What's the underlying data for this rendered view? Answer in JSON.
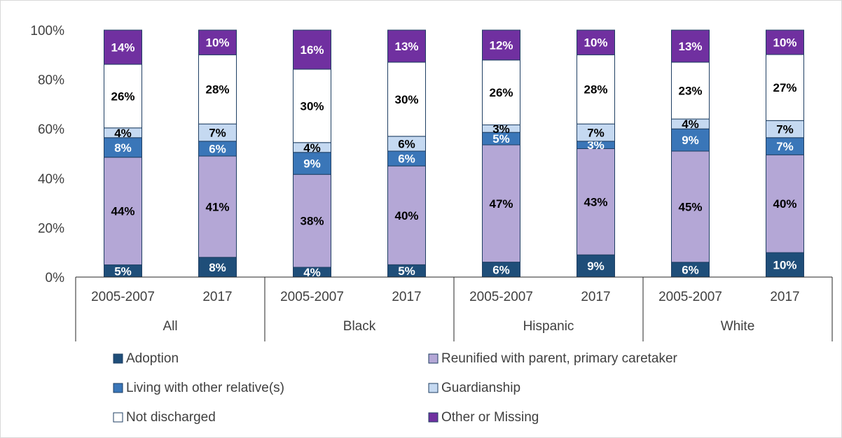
{
  "chart_data": {
    "type": "bar",
    "stacked": true,
    "percent": true,
    "title": "",
    "xlabel": "",
    "ylabel": "",
    "ylim": [
      0,
      100
    ],
    "y_ticks": [
      "0%",
      "20%",
      "40%",
      "60%",
      "80%",
      "100%"
    ],
    "grid": false,
    "legend_position": "bottom",
    "groups": [
      {
        "name": "All",
        "bars": [
          {
            "label": "2005-2007",
            "values": [
              5,
              44,
              8,
              4,
              26,
              14
            ]
          },
          {
            "label": "2017",
            "values": [
              8,
              41,
              6,
              7,
              28,
              10
            ]
          }
        ]
      },
      {
        "name": "Black",
        "bars": [
          {
            "label": "2005-2007",
            "values": [
              4,
              38,
              9,
              4,
              30,
              16
            ]
          },
          {
            "label": "2017",
            "values": [
              5,
              40,
              6,
              6,
              30,
              13
            ]
          }
        ]
      },
      {
        "name": "Hispanic",
        "bars": [
          {
            "label": "2005-2007",
            "values": [
              6,
              47,
              5,
              3,
              26,
              12
            ]
          },
          {
            "label": "2017",
            "values": [
              9,
              43,
              3,
              7,
              28,
              10
            ]
          }
        ]
      },
      {
        "name": "White",
        "bars": [
          {
            "label": "2005-2007",
            "values": [
              6,
              45,
              9,
              4,
              23,
              13
            ]
          },
          {
            "label": "2017",
            "values": [
              10,
              40,
              7,
              7,
              27,
              10
            ]
          }
        ]
      }
    ],
    "series": [
      {
        "name": "Adoption",
        "color": "#1f4e79",
        "text_color": "#ffffff"
      },
      {
        "name": "Reunified with parent, primary caretaker",
        "color": "#b4a7d6",
        "text_color": "#000000"
      },
      {
        "name": "Living with other relative(s)",
        "color": "#3a76b8",
        "text_color": "#ffffff"
      },
      {
        "name": "Guardianship",
        "color": "#c5d9f1",
        "text_color": "#000000"
      },
      {
        "name": "Not discharged",
        "color": "#ffffff",
        "text_color": "#000000"
      },
      {
        "name": "Other or Missing",
        "color": "#7030a0",
        "text_color": "#ffffff"
      }
    ],
    "legend_order": [
      0,
      1,
      2,
      3,
      4,
      5
    ]
  }
}
